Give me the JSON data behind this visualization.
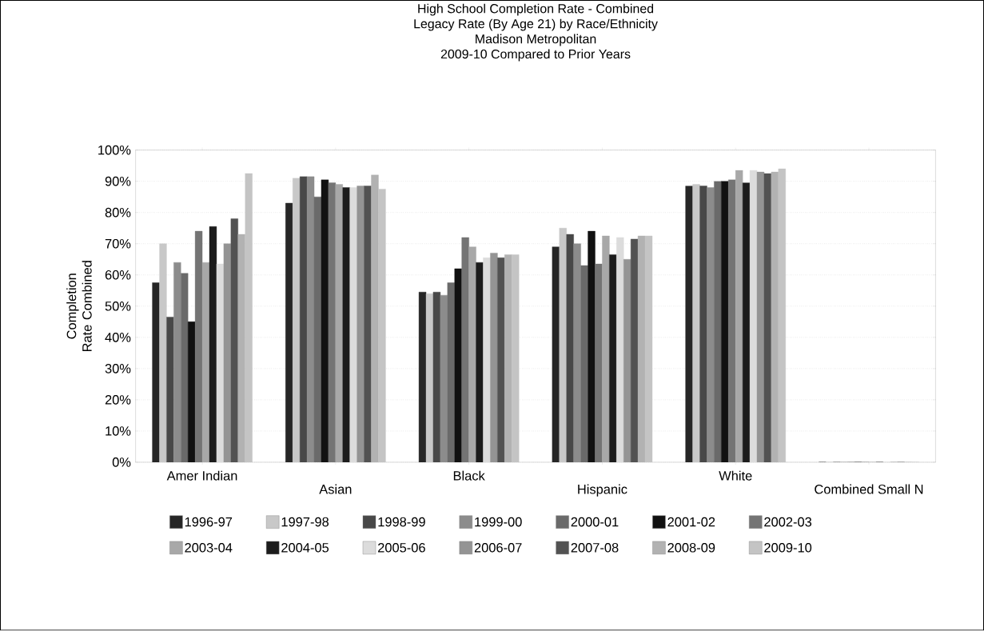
{
  "chart_data": {
    "type": "bar",
    "title": "High School Completion Rate - Combined",
    "subtitle": "Legacy Rate (By Age 21) by Race/Ethnicity",
    "annotations": [
      "Madison Metropolitan",
      "2009-10  Compared to Prior Years"
    ],
    "ylabel": "Completion Rate Combined",
    "categories": [
      "Amer Indian",
      "Asian",
      "Black",
      "Hispanic",
      "White",
      "Combined Small N"
    ],
    "ylim": [
      0,
      100
    ],
    "yticks": [
      {
        "value": 0,
        "label": "0%"
      },
      {
        "value": 10,
        "label": "10%"
      },
      {
        "value": 20,
        "label": "20%"
      },
      {
        "value": 30,
        "label": "30%"
      },
      {
        "value": 40,
        "label": "40%"
      },
      {
        "value": 50,
        "label": "50%"
      },
      {
        "value": 60,
        "label": "60%"
      },
      {
        "value": 70,
        "label": "70%"
      },
      {
        "value": 80,
        "label": "80%"
      },
      {
        "value": 90,
        "label": "90%"
      },
      {
        "value": 100,
        "label": "100%"
      }
    ],
    "grid": "y",
    "legend": "bottom",
    "series": [
      {
        "name": "1996-97",
        "color": "#262626",
        "values": [
          57.5,
          83,
          54.5,
          69,
          88.5,
          0
        ]
      },
      {
        "name": "1997-98",
        "color": "#c8c8c8",
        "values": [
          70,
          91,
          54,
          75,
          89,
          0
        ]
      },
      {
        "name": "1998-99",
        "color": "#484848",
        "values": [
          46.5,
          91.5,
          54.5,
          73,
          88.5,
          0
        ]
      },
      {
        "name": "1999-00",
        "color": "#8c8c8c",
        "values": [
          64,
          91.5,
          53.5,
          70,
          88,
          0
        ]
      },
      {
        "name": "2000-01",
        "color": "#6a6a6a",
        "values": [
          60.5,
          85,
          57.5,
          63,
          90,
          0
        ]
      },
      {
        "name": "2001-02",
        "color": "#111111",
        "values": [
          45,
          90.5,
          62,
          74,
          90,
          0
        ]
      },
      {
        "name": "2002-03",
        "color": "#747474",
        "values": [
          74,
          89.5,
          72,
          63.5,
          90.5,
          0
        ]
      },
      {
        "name": "2003-04",
        "color": "#a8a8a8",
        "values": [
          64,
          89,
          69,
          72.5,
          93.5,
          0
        ]
      },
      {
        "name": "2004-05",
        "color": "#1c1c1c",
        "values": [
          75.5,
          88,
          64,
          66.5,
          89.5,
          0
        ]
      },
      {
        "name": "2005-06",
        "color": "#dcdcdc",
        "values": [
          63.5,
          88,
          65.5,
          72,
          93.5,
          0
        ]
      },
      {
        "name": "2006-07",
        "color": "#949494",
        "values": [
          70,
          88.5,
          67,
          65,
          93,
          0
        ]
      },
      {
        "name": "2007-08",
        "color": "#525252",
        "values": [
          78,
          88.5,
          65.5,
          71.5,
          92.5,
          0
        ]
      },
      {
        "name": "2008-09",
        "color": "#b2b2b2",
        "values": [
          73,
          92,
          66.5,
          72.5,
          93,
          0
        ]
      },
      {
        "name": "2009-10",
        "color": "#c4c4c4",
        "values": [
          92.5,
          87.5,
          66.5,
          72.5,
          94,
          0
        ]
      }
    ]
  }
}
